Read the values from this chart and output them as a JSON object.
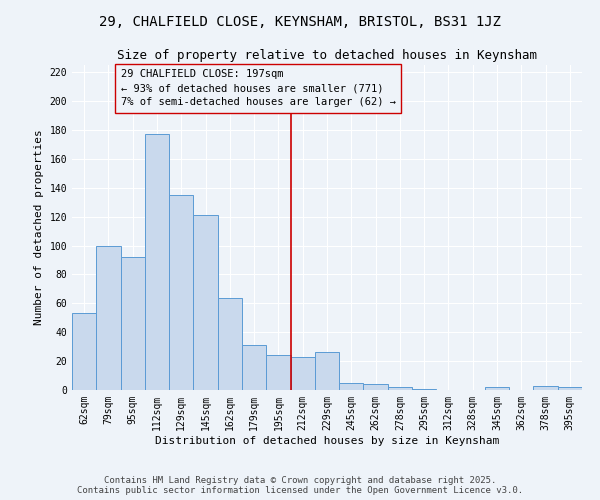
{
  "title_line1": "29, CHALFIELD CLOSE, KEYNSHAM, BRISTOL, BS31 1JZ",
  "title_line2": "Size of property relative to detached houses in Keynsham",
  "xlabel": "Distribution of detached houses by size in Keynsham",
  "ylabel": "Number of detached properties",
  "categories": [
    "62sqm",
    "79sqm",
    "95sqm",
    "112sqm",
    "129sqm",
    "145sqm",
    "162sqm",
    "179sqm",
    "195sqm",
    "212sqm",
    "229sqm",
    "245sqm",
    "262sqm",
    "278sqm",
    "295sqm",
    "312sqm",
    "328sqm",
    "345sqm",
    "362sqm",
    "378sqm",
    "395sqm"
  ],
  "values": [
    53,
    100,
    92,
    177,
    135,
    121,
    64,
    31,
    24,
    23,
    26,
    5,
    4,
    2,
    1,
    0,
    0,
    2,
    0,
    3,
    2
  ],
  "bar_color": "#c9d9ed",
  "bar_edge_color": "#5b9bd5",
  "background_color": "#eef3f9",
  "grid_color": "#ffffff",
  "vline_color": "#cc0000",
  "annotation_text": "29 CHALFIELD CLOSE: 197sqm\n← 93% of detached houses are smaller (771)\n7% of semi-detached houses are larger (62) →",
  "ylim": [
    0,
    225
  ],
  "yticks": [
    0,
    20,
    40,
    60,
    80,
    100,
    120,
    140,
    160,
    180,
    200,
    220
  ],
  "footer_text": "Contains HM Land Registry data © Crown copyright and database right 2025.\nContains public sector information licensed under the Open Government Licence v3.0.",
  "title_fontsize": 10,
  "subtitle_fontsize": 9,
  "axis_label_fontsize": 8,
  "tick_fontsize": 7,
  "annotation_fontsize": 7.5,
  "footer_fontsize": 6.5
}
